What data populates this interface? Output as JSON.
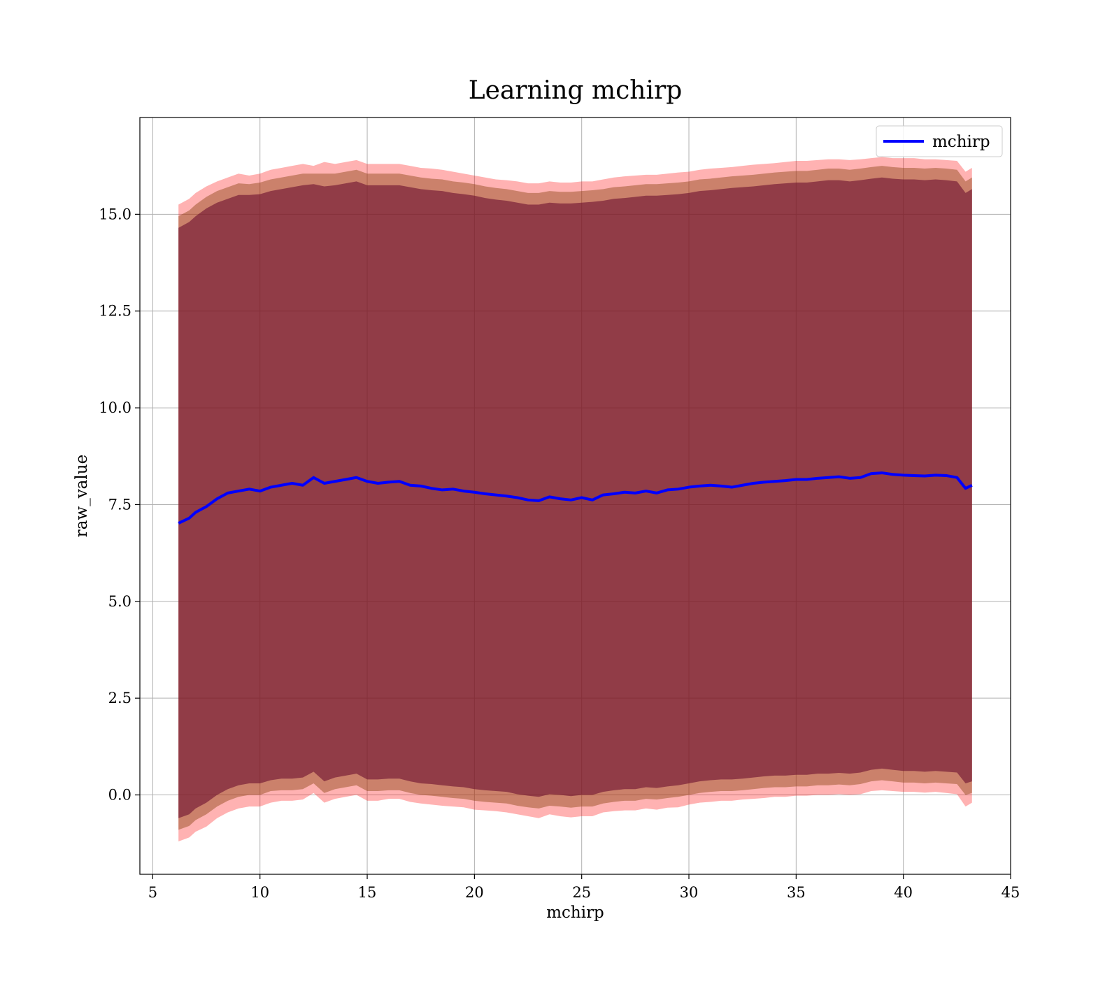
{
  "chart_data": {
    "type": "line",
    "title": "Learning mchirp",
    "xlabel": "mchirp",
    "ylabel": "raw_value",
    "xlim": [
      4.4,
      45
    ],
    "ylim": [
      -2.05,
      17.5
    ],
    "xticks": [
      5,
      10,
      15,
      20,
      25,
      30,
      35,
      40,
      45
    ],
    "xtick_labels": [
      "5",
      "10",
      "15",
      "20",
      "25",
      "30",
      "35",
      "40",
      "45"
    ],
    "yticks": [
      0,
      2.5,
      5,
      7.5,
      10,
      12.5,
      15
    ],
    "ytick_labels": [
      "0.0",
      "2.5",
      "5.0",
      "7.5",
      "10.0",
      "12.5",
      "15.0"
    ],
    "grid": true,
    "legend": {
      "position": "top-right",
      "entries": [
        "mchirp"
      ]
    },
    "colors": {
      "line": "#0000ff",
      "band_outer": "#ff0000",
      "band_middle": "#8b4513",
      "band_inner": "#6a0f2e"
    },
    "series": [
      {
        "name": "mchirp",
        "x": [
          6.2,
          6.7,
          7.0,
          7.5,
          8.0,
          8.5,
          9.0,
          9.5,
          10.0,
          10.5,
          11.0,
          11.5,
          12.0,
          12.5,
          13.0,
          13.5,
          14.0,
          14.5,
          15.0,
          15.5,
          16.0,
          16.5,
          17.0,
          17.5,
          18.0,
          18.5,
          19.0,
          19.5,
          20.0,
          20.5,
          21.0,
          21.5,
          22.0,
          22.5,
          23.0,
          23.5,
          24.0,
          24.5,
          25.0,
          25.5,
          26.0,
          26.5,
          27.0,
          27.5,
          28.0,
          28.5,
          29.0,
          29.5,
          30.0,
          30.5,
          31.0,
          31.5,
          32.0,
          32.5,
          33.0,
          33.5,
          34.0,
          34.5,
          35.0,
          35.5,
          36.0,
          36.5,
          37.0,
          37.5,
          38.0,
          38.5,
          39.0,
          39.5,
          40.0,
          40.5,
          41.0,
          41.5,
          42.0,
          42.5,
          42.9,
          43.2
        ],
        "mean": [
          7.02,
          7.15,
          7.3,
          7.45,
          7.65,
          7.8,
          7.85,
          7.9,
          7.85,
          7.95,
          8.0,
          8.05,
          8.0,
          8.2,
          8.05,
          8.1,
          8.15,
          8.2,
          8.1,
          8.05,
          8.08,
          8.1,
          8.0,
          7.98,
          7.92,
          7.88,
          7.9,
          7.85,
          7.82,
          7.78,
          7.75,
          7.72,
          7.68,
          7.62,
          7.6,
          7.7,
          7.65,
          7.62,
          7.68,
          7.62,
          7.75,
          7.78,
          7.82,
          7.8,
          7.85,
          7.8,
          7.88,
          7.9,
          7.95,
          7.98,
          8.0,
          7.98,
          7.95,
          8.0,
          8.05,
          8.08,
          8.1,
          8.12,
          8.15,
          8.15,
          8.18,
          8.2,
          8.22,
          8.18,
          8.2,
          8.3,
          8.32,
          8.28,
          8.26,
          8.25,
          8.24,
          8.26,
          8.25,
          8.2,
          7.92,
          8.0
        ]
      }
    ],
    "bands": [
      {
        "level": "outer",
        "upper": [
          15.25,
          15.4,
          15.55,
          15.72,
          15.85,
          15.95,
          16.05,
          16.0,
          16.05,
          16.15,
          16.2,
          16.25,
          16.3,
          16.25,
          16.35,
          16.3,
          16.35,
          16.4,
          16.3,
          16.3,
          16.3,
          16.3,
          16.25,
          16.2,
          16.18,
          16.15,
          16.1,
          16.05,
          16.0,
          15.95,
          15.9,
          15.88,
          15.85,
          15.8,
          15.8,
          15.85,
          15.82,
          15.82,
          15.85,
          15.85,
          15.9,
          15.95,
          15.98,
          16.0,
          16.02,
          16.02,
          16.05,
          16.08,
          16.1,
          16.15,
          16.18,
          16.2,
          16.22,
          16.25,
          16.28,
          16.3,
          16.32,
          16.35,
          16.38,
          16.38,
          16.4,
          16.42,
          16.42,
          16.4,
          16.42,
          16.45,
          16.48,
          16.45,
          16.45,
          16.45,
          16.42,
          16.42,
          16.4,
          16.38,
          16.1,
          16.2
        ],
        "lower": [
          -1.2,
          -1.1,
          -0.95,
          -0.82,
          -0.6,
          -0.45,
          -0.35,
          -0.3,
          -0.3,
          -0.2,
          -0.15,
          -0.15,
          -0.12,
          0.05,
          -0.2,
          -0.1,
          -0.05,
          0.0,
          -0.15,
          -0.15,
          -0.1,
          -0.1,
          -0.18,
          -0.22,
          -0.25,
          -0.28,
          -0.3,
          -0.32,
          -0.38,
          -0.4,
          -0.42,
          -0.45,
          -0.5,
          -0.55,
          -0.6,
          -0.5,
          -0.55,
          -0.58,
          -0.55,
          -0.55,
          -0.45,
          -0.42,
          -0.4,
          -0.4,
          -0.35,
          -0.38,
          -0.33,
          -0.32,
          -0.25,
          -0.2,
          -0.18,
          -0.15,
          -0.15,
          -0.12,
          -0.1,
          -0.08,
          -0.05,
          -0.05,
          -0.02,
          -0.02,
          0.0,
          0.0,
          0.02,
          0.0,
          0.02,
          0.1,
          0.12,
          0.1,
          0.08,
          0.08,
          0.06,
          0.08,
          0.05,
          0.02,
          -0.3,
          -0.2
        ]
      },
      {
        "level": "middle",
        "upper": [
          14.95,
          15.1,
          15.25,
          15.45,
          15.6,
          15.7,
          15.8,
          15.78,
          15.82,
          15.9,
          15.95,
          16.0,
          16.05,
          16.05,
          16.05,
          16.05,
          16.1,
          16.15,
          16.05,
          16.05,
          16.05,
          16.05,
          16.0,
          15.95,
          15.92,
          15.9,
          15.85,
          15.82,
          15.78,
          15.72,
          15.68,
          15.65,
          15.6,
          15.55,
          15.55,
          15.6,
          15.58,
          15.58,
          15.6,
          15.62,
          15.65,
          15.7,
          15.72,
          15.75,
          15.78,
          15.78,
          15.8,
          15.82,
          15.85,
          15.9,
          15.92,
          15.95,
          15.98,
          16.0,
          16.02,
          16.05,
          16.08,
          16.1,
          16.12,
          16.12,
          16.15,
          16.18,
          16.18,
          16.15,
          16.18,
          16.22,
          16.25,
          16.22,
          16.2,
          16.2,
          16.18,
          16.2,
          16.18,
          16.15,
          15.85,
          15.95
        ],
        "lower": [
          -0.9,
          -0.8,
          -0.65,
          -0.5,
          -0.3,
          -0.15,
          -0.05,
          0.0,
          0.0,
          0.1,
          0.12,
          0.12,
          0.15,
          0.3,
          0.05,
          0.15,
          0.2,
          0.25,
          0.1,
          0.1,
          0.12,
          0.12,
          0.05,
          0.0,
          -0.02,
          -0.05,
          -0.08,
          -0.1,
          -0.15,
          -0.18,
          -0.2,
          -0.22,
          -0.28,
          -0.32,
          -0.35,
          -0.28,
          -0.3,
          -0.33,
          -0.3,
          -0.3,
          -0.22,
          -0.18,
          -0.15,
          -0.15,
          -0.1,
          -0.12,
          -0.08,
          -0.05,
          0.0,
          0.05,
          0.08,
          0.1,
          0.1,
          0.12,
          0.15,
          0.18,
          0.2,
          0.2,
          0.22,
          0.22,
          0.25,
          0.25,
          0.27,
          0.25,
          0.28,
          0.35,
          0.38,
          0.35,
          0.32,
          0.32,
          0.3,
          0.32,
          0.3,
          0.28,
          0.0,
          0.05
        ]
      },
      {
        "level": "inner",
        "upper": [
          14.65,
          14.8,
          14.95,
          15.15,
          15.3,
          15.4,
          15.5,
          15.5,
          15.52,
          15.6,
          15.65,
          15.7,
          15.75,
          15.78,
          15.72,
          15.75,
          15.8,
          15.85,
          15.75,
          15.75,
          15.75,
          15.75,
          15.7,
          15.65,
          15.62,
          15.6,
          15.55,
          15.52,
          15.48,
          15.42,
          15.38,
          15.35,
          15.3,
          15.25,
          15.25,
          15.3,
          15.28,
          15.28,
          15.3,
          15.32,
          15.35,
          15.4,
          15.42,
          15.45,
          15.48,
          15.48,
          15.5,
          15.52,
          15.55,
          15.6,
          15.62,
          15.65,
          15.68,
          15.7,
          15.72,
          15.75,
          15.78,
          15.8,
          15.82,
          15.82,
          15.85,
          15.88,
          15.88,
          15.85,
          15.88,
          15.92,
          15.95,
          15.92,
          15.9,
          15.9,
          15.88,
          15.9,
          15.88,
          15.85,
          15.55,
          15.65
        ],
        "lower": [
          -0.6,
          -0.5,
          -0.35,
          -0.2,
          0.0,
          0.15,
          0.25,
          0.3,
          0.3,
          0.38,
          0.42,
          0.42,
          0.45,
          0.6,
          0.35,
          0.45,
          0.5,
          0.55,
          0.4,
          0.4,
          0.42,
          0.42,
          0.35,
          0.3,
          0.28,
          0.25,
          0.22,
          0.2,
          0.15,
          0.12,
          0.1,
          0.08,
          0.02,
          -0.02,
          -0.05,
          0.02,
          0.0,
          -0.03,
          0.0,
          0.0,
          0.08,
          0.12,
          0.15,
          0.15,
          0.2,
          0.18,
          0.22,
          0.25,
          0.3,
          0.35,
          0.38,
          0.4,
          0.4,
          0.42,
          0.45,
          0.48,
          0.5,
          0.5,
          0.52,
          0.52,
          0.55,
          0.55,
          0.57,
          0.55,
          0.58,
          0.65,
          0.68,
          0.65,
          0.62,
          0.62,
          0.6,
          0.62,
          0.6,
          0.58,
          0.3,
          0.35
        ]
      }
    ]
  }
}
